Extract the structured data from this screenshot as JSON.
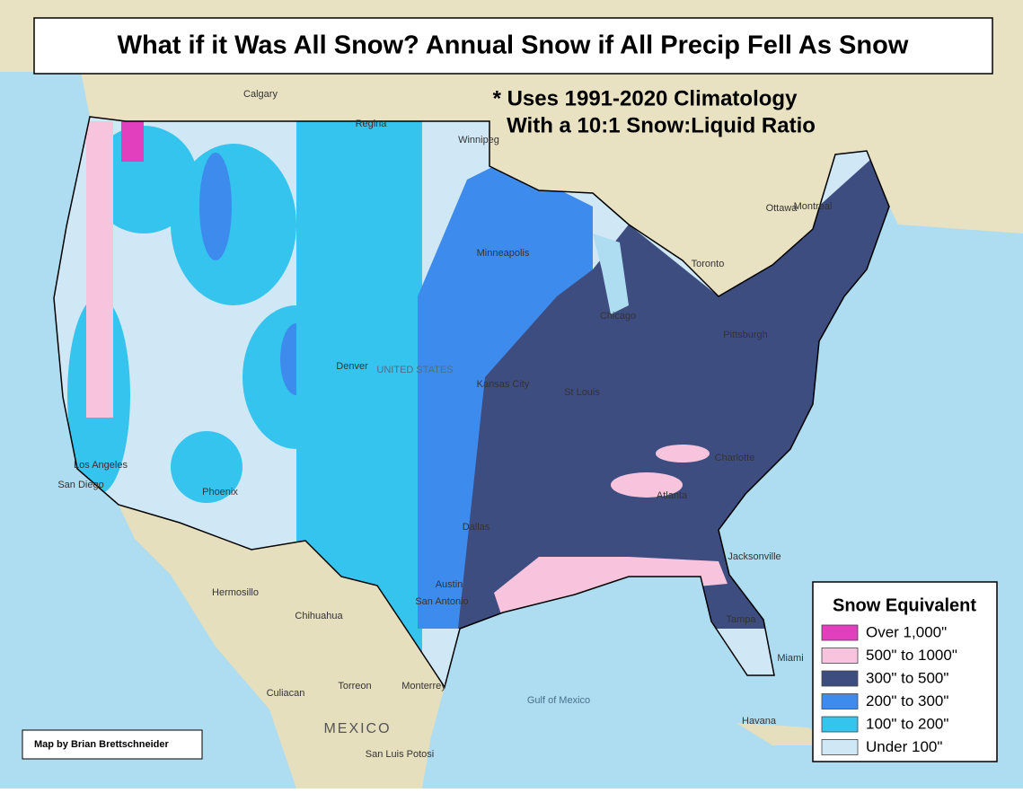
{
  "header": {
    "title": "What if it Was All Snow? Annual Snow if All Precip Fell As Snow",
    "subtitle": [
      "* Uses 1991-2020 Climatology",
      "With a 10:1 Snow:Liquid Ratio"
    ]
  },
  "legend": {
    "title": "Snow Equivalent",
    "items": [
      {
        "label": "Over 1,000\"",
        "color": "#e23fbe"
      },
      {
        "label": "500\" to 1000\"",
        "color": "#f8c4dd"
      },
      {
        "label": "300\" to 500\"",
        "color": "#3e4d80"
      },
      {
        "label": "200\" to 300\"",
        "color": "#3d8ced"
      },
      {
        "label": "100\" to 200\"",
        "color": "#34c4ee"
      },
      {
        "label": "Under 100\"",
        "color": "#d0e8f6"
      }
    ]
  },
  "credit": "Map by Brian Brettschneider",
  "places": [
    "Calgary",
    "Regina",
    "Winnipeg",
    "Ottawa",
    "Montreal",
    "Toronto",
    "Minneapolis",
    "Chicago",
    "Denver",
    "Kansas City",
    "St Louis",
    "Dallas",
    "Austin",
    "San Antonio",
    "Los Angeles",
    "San Diego",
    "Phoenix",
    "Atlanta",
    "Charlotte",
    "Pittsburgh",
    "Jacksonville",
    "Tampa",
    "Miami",
    "Havana",
    "Hermosillo",
    "Chihuahua",
    "Torreon",
    "Monterrey",
    "Culiacan",
    "San Luis Potosi",
    "MEXICO",
    "Gulf of Mexico",
    "UNITED STATES"
  ]
}
